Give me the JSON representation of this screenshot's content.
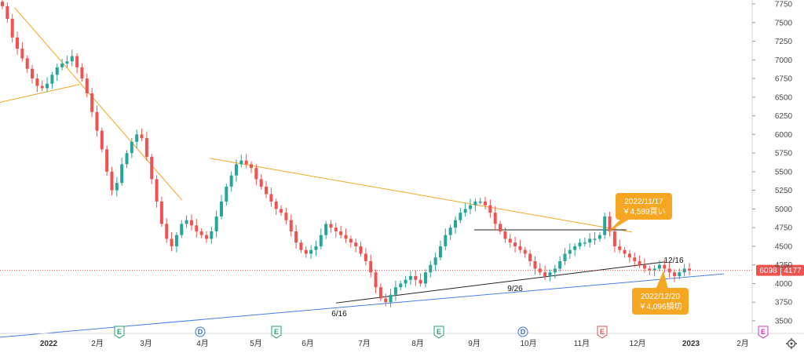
{
  "chart_data": {
    "type": "candlestick",
    "y_axis": {
      "ticks": [
        "7750",
        "7500",
        "7250",
        "7000",
        "6750",
        "6500",
        "6250",
        "6000",
        "5750",
        "5500",
        "5250",
        "5000",
        "4750",
        "4500",
        "4250",
        "4000",
        "3750",
        "3500"
      ],
      "range": [
        3350,
        7800
      ]
    },
    "x_axis": {
      "ticks": [
        {
          "label": "2022",
          "bold": true
        },
        {
          "label": "2月",
          "bold": false
        },
        {
          "label": "3月",
          "bold": false
        },
        {
          "label": "4月",
          "bold": false
        },
        {
          "label": "5月",
          "bold": false
        },
        {
          "label": "6月",
          "bold": false
        },
        {
          "label": "7月",
          "bold": false
        },
        {
          "label": "8月",
          "bold": false
        },
        {
          "label": "9月",
          "bold": false
        },
        {
          "label": "10月",
          "bold": false
        },
        {
          "label": "11月",
          "bold": false
        },
        {
          "label": "12月",
          "bold": false
        },
        {
          "label": "2023",
          "bold": true
        },
        {
          "label": "2月",
          "bold": false
        }
      ]
    },
    "price_labels": {
      "left": "6098",
      "right": "4177",
      "last_price": 4177
    },
    "candles_rough_path": [
      7720,
      7550,
      7300,
      7150,
      7020,
      6880,
      6750,
      6650,
      6620,
      6680,
      6800,
      6900,
      6950,
      6980,
      7050,
      6900,
      6750,
      6550,
      6300,
      6050,
      5800,
      5500,
      5250,
      5350,
      5600,
      5750,
      5900,
      6000,
      5950,
      5700,
      5400,
      5100,
      4800,
      4600,
      4500,
      4650,
      4800,
      4850,
      4780,
      4700,
      4650,
      4600,
      4700,
      4900,
      5100,
      5300,
      5450,
      5600,
      5650,
      5600,
      5550,
      5400,
      5300,
      5200,
      5100,
      5000,
      4950,
      4850,
      4700,
      4550,
      4450,
      4400,
      4450,
      4500,
      4650,
      4800,
      4750,
      4700,
      4650,
      4600,
      4550,
      4500,
      4400,
      4300,
      4150,
      3950,
      3800,
      3750,
      3850,
      3950,
      4000,
      4050,
      4100,
      4050,
      4000,
      4150,
      4250,
      4350,
      4500,
      4650,
      4750,
      4850,
      4950,
      5000,
      5050,
      5100,
      5100,
      5050,
      4950,
      4800,
      4700,
      4600,
      4550,
      4500,
      4450,
      4400,
      4300,
      4200,
      4150,
      4100,
      4150,
      4200,
      4300,
      4400,
      4450,
      4500,
      4550,
      4550,
      4600,
      4600,
      4650,
      4900,
      4700,
      4500,
      4450,
      4400,
      4350,
      4300,
      4250,
      4200,
      4180,
      4200,
      4250,
      4200,
      4150,
      4100,
      4150,
      4200,
      4177
    ],
    "trendlines": [
      {
        "color": "#f5a623",
        "from": [
          "2021-12-10",
          7700
        ],
        "to": [
          "2022-03-20",
          5120
        ]
      },
      {
        "color": "#f5a623",
        "from": [
          "2022-04-05",
          5680
        ],
        "to": [
          "2022-11-28",
          4690
        ]
      },
      {
        "color": "#f5a623",
        "from": [
          "2021-12-01",
          6430
        ],
        "to": [
          "2022-01-20",
          6670
        ]
      },
      {
        "color": "#222222",
        "from": [
          "2022-09-01",
          4720
        ],
        "to": [
          "2022-11-25",
          4720
        ]
      },
      {
        "color": "#222222",
        "from": [
          "2022-06-16",
          3740
        ],
        "to": [
          "2022-12-16",
          4290
        ]
      },
      {
        "color": "#4a7de8",
        "from": [
          "2021-12-01",
          3280
        ],
        "to": [
          "2023-01-20",
          4130
        ]
      }
    ],
    "annotations": [
      {
        "text": "6/16"
      },
      {
        "text": "9/26"
      },
      {
        "text": "12/16"
      }
    ],
    "callouts": [
      {
        "line1": "2022/11/17",
        "line2": "￥4,589買い"
      },
      {
        "line1": "2022/12/20",
        "line2": "￥4,096損切"
      }
    ],
    "events": [
      {
        "label": "E",
        "color": "#22a06b"
      },
      {
        "label": "D",
        "color": "#3b6fe0"
      },
      {
        "label": "E",
        "color": "#22a06b"
      },
      {
        "label": "E",
        "color": "#22a06b"
      },
      {
        "label": "D",
        "color": "#3b6fe0"
      },
      {
        "label": "E",
        "color": "#e84c4c"
      },
      {
        "label": "E",
        "color": "#cc33cc"
      }
    ],
    "colors": {
      "up": "#26a69a",
      "down": "#ef5350",
      "orange": "#f5a623",
      "blue_line": "#4a7de8",
      "price_line": "#ef5350",
      "left_price_bg": "#ef5350",
      "right_price_bg": "#ef5350"
    }
  },
  "icons": {
    "settings": "gear-icon"
  }
}
